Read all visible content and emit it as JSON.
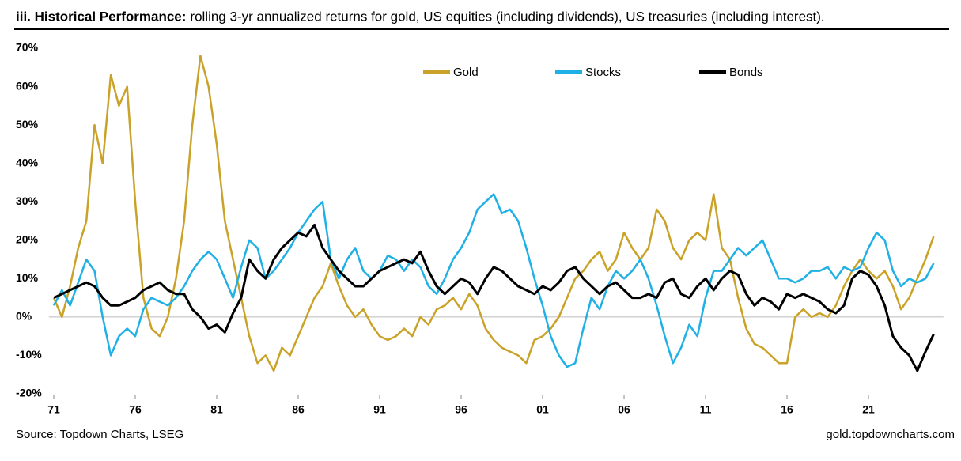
{
  "chart_data": {
    "type": "line",
    "title": "iii. Historical Performance:",
    "subtitle": "rolling 3-yr annualized returns for gold, US equities (including dividends), US treasuries (including interest).",
    "source": "Source: Topdown Charts, LSEG",
    "credit": "gold.topdowncharts.com",
    "xlim": [
      1970.7,
      2025.6
    ],
    "xticks": [
      {
        "value": 1971,
        "label": "71"
      },
      {
        "value": 1976,
        "label": "76"
      },
      {
        "value": 1981,
        "label": "81"
      },
      {
        "value": 1986,
        "label": "86"
      },
      {
        "value": 1991,
        "label": "91"
      },
      {
        "value": 1996,
        "label": "96"
      },
      {
        "value": 2001,
        "label": "01"
      },
      {
        "value": 2006,
        "label": "06"
      },
      {
        "value": 2011,
        "label": "11"
      },
      {
        "value": 2016,
        "label": "16"
      },
      {
        "value": 2021,
        "label": "21"
      }
    ],
    "ylim": [
      -20,
      70
    ],
    "yticks": [
      {
        "value": -20,
        "label": "-20%"
      },
      {
        "value": -10,
        "label": "-10%"
      },
      {
        "value": 0,
        "label": "0%"
      },
      {
        "value": 10,
        "label": "10%"
      },
      {
        "value": 20,
        "label": "20%"
      },
      {
        "value": 30,
        "label": "30%"
      },
      {
        "value": 40,
        "label": "40%"
      },
      {
        "value": 50,
        "label": "50%"
      },
      {
        "value": 60,
        "label": "60%"
      },
      {
        "value": 70,
        "label": "70%"
      }
    ],
    "grid": false,
    "legend": "top",
    "x": [
      1971,
      1971.5,
      1972,
      1972.5,
      1973,
      1973.5,
      1974,
      1974.5,
      1975,
      1975.5,
      1976,
      1976.5,
      1977,
      1977.5,
      1978,
      1978.5,
      1979,
      1979.5,
      1980,
      1980.5,
      1981,
      1981.5,
      1982,
      1982.5,
      1983,
      1983.5,
      1984,
      1984.5,
      1985,
      1985.5,
      1986,
      1986.5,
      1987,
      1987.5,
      1988,
      1988.5,
      1989,
      1989.5,
      1990,
      1990.5,
      1991,
      1991.5,
      1992,
      1992.5,
      1993,
      1993.5,
      1994,
      1994.5,
      1995,
      1995.5,
      1996,
      1996.5,
      1997,
      1997.5,
      1998,
      1998.5,
      1999,
      1999.5,
      2000,
      2000.5,
      2001,
      2001.5,
      2002,
      2002.5,
      2003,
      2003.5,
      2004,
      2004.5,
      2005,
      2005.5,
      2006,
      2006.5,
      2007,
      2007.5,
      2008,
      2008.5,
      2009,
      2009.5,
      2010,
      2010.5,
      2011,
      2011.5,
      2012,
      2012.5,
      2013,
      2013.5,
      2014,
      2014.5,
      2015,
      2015.5,
      2016,
      2016.5,
      2017,
      2017.5,
      2018,
      2018.5,
      2019,
      2019.5,
      2020,
      2020.5,
      2021,
      2021.5,
      2022,
      2022.5,
      2023,
      2023.5,
      2024,
      2024.5,
      2025
    ],
    "series": [
      {
        "name": "Gold",
        "color": "#c9a227",
        "values": [
          5,
          0,
          8,
          18,
          25,
          50,
          40,
          63,
          55,
          60,
          30,
          5,
          -3,
          -5,
          0,
          10,
          25,
          50,
          68,
          60,
          45,
          25,
          15,
          5,
          -5,
          -12,
          -10,
          -14,
          -8,
          -10,
          -5,
          0,
          5,
          8,
          14,
          8,
          3,
          0,
          2,
          -2,
          -5,
          -6,
          -5,
          -3,
          -5,
          0,
          -2,
          2,
          3,
          5,
          2,
          6,
          3,
          -3,
          -6,
          -8,
          -9,
          -10,
          -12,
          -6,
          -5,
          -3,
          0,
          5,
          10,
          12,
          15,
          17,
          12,
          15,
          22,
          18,
          15,
          18,
          28,
          25,
          18,
          15,
          20,
          22,
          20,
          32,
          18,
          15,
          5,
          -3,
          -7,
          -8,
          -10,
          -12,
          -12,
          0,
          2,
          0,
          1,
          0,
          3,
          8,
          12,
          15,
          12,
          10,
          12,
          8,
          2,
          5,
          10,
          15,
          21
        ]
      },
      {
        "name": "Stocks",
        "color": "#1fb0e6",
        "values": [
          3,
          7,
          3,
          9,
          15,
          12,
          0,
          -10,
          -5,
          -3,
          -5,
          2,
          5,
          4,
          3,
          5,
          8,
          12,
          15,
          17,
          15,
          10,
          5,
          13,
          20,
          18,
          10,
          12,
          15,
          18,
          22,
          25,
          28,
          30,
          15,
          10,
          15,
          18,
          12,
          10,
          12,
          16,
          15,
          12,
          15,
          13,
          8,
          6,
          10,
          15,
          18,
          22,
          28,
          30,
          32,
          27,
          28,
          25,
          18,
          10,
          3,
          -5,
          -10,
          -13,
          -12,
          -3,
          5,
          2,
          8,
          12,
          10,
          12,
          15,
          10,
          3,
          -5,
          -12,
          -8,
          -2,
          -5,
          5,
          12,
          12,
          15,
          18,
          16,
          18,
          20,
          15,
          10,
          10,
          9,
          10,
          12,
          12,
          13,
          10,
          13,
          12,
          13,
          18,
          22,
          20,
          12,
          8,
          10,
          9,
          10,
          14
        ]
      },
      {
        "name": "Bonds",
        "color": "#000000",
        "values": [
          5,
          6,
          7,
          8,
          9,
          8,
          5,
          3,
          3,
          4,
          5,
          7,
          8,
          9,
          7,
          6,
          6,
          2,
          0,
          -3,
          -2,
          -4,
          1,
          5,
          15,
          12,
          10,
          15,
          18,
          20,
          22,
          21,
          24,
          18,
          15,
          12,
          10,
          8,
          8,
          10,
          12,
          13,
          14,
          15,
          14,
          17,
          12,
          8,
          6,
          8,
          10,
          9,
          6,
          10,
          13,
          12,
          10,
          8,
          7,
          6,
          8,
          7,
          9,
          12,
          13,
          10,
          8,
          6,
          8,
          9,
          7,
          5,
          5,
          6,
          5,
          9,
          10,
          6,
          5,
          8,
          10,
          7,
          10,
          12,
          11,
          6,
          3,
          5,
          4,
          2,
          6,
          5,
          6,
          5,
          4,
          2,
          1,
          3,
          10,
          12,
          11,
          8,
          3,
          -5,
          -8,
          -10,
          -14,
          -9,
          -4.5
        ]
      }
    ]
  }
}
